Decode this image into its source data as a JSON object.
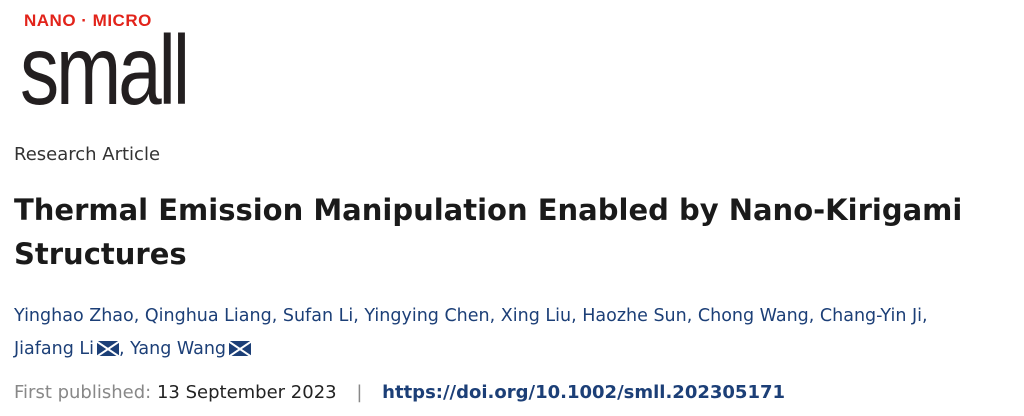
{
  "journal": {
    "tagline": "NANO · MICRO",
    "name": "small",
    "colors": {
      "tagline": "#e2231a",
      "name": "#231f20"
    }
  },
  "article_type": "Research Article",
  "title": "Thermal Emission Manipulation Enabled by Nano-Kirigami Structures",
  "authors": [
    {
      "name": "Yinghao Zhao",
      "corresponding": false
    },
    {
      "name": "Qinghua Liang",
      "corresponding": false
    },
    {
      "name": "Sufan Li",
      "corresponding": false
    },
    {
      "name": "Yingying Chen",
      "corresponding": false
    },
    {
      "name": "Xing Liu",
      "corresponding": false
    },
    {
      "name": "Haozhe Sun",
      "corresponding": false
    },
    {
      "name": "Chong Wang",
      "corresponding": false
    },
    {
      "name": "Chang-Yin Ji",
      "corresponding": false
    },
    {
      "name": "Jiafang Li",
      "corresponding": true
    },
    {
      "name": "Yang Wang",
      "corresponding": true
    }
  ],
  "publication": {
    "label": "First published:",
    "date": "13 September 2023",
    "separator": "|",
    "doi": "https://doi.org/10.1002/smll.202305171"
  },
  "icons": {
    "corresponding": "envelope-icon"
  },
  "link_color": "#1c3f77"
}
